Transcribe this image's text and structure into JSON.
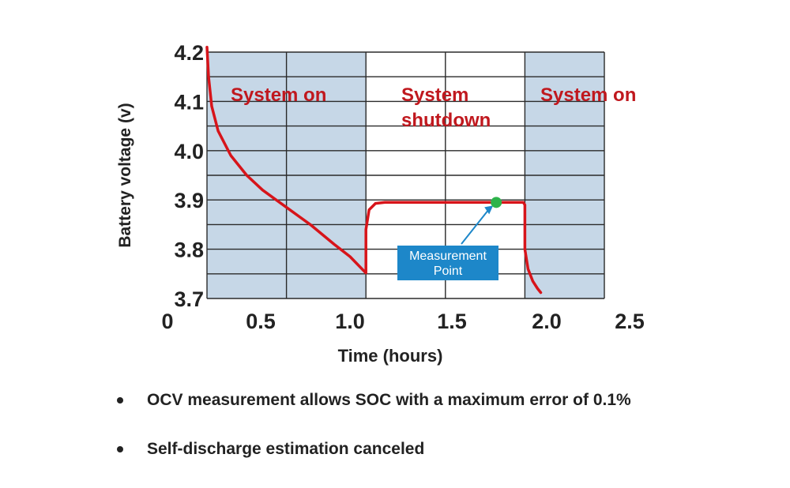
{
  "chart_data": {
    "type": "line",
    "xlabel": "Time (hours)",
    "ylabel": "Battery voltage (v)",
    "xlim": [
      0,
      2.5
    ],
    "ylim": [
      3.7,
      4.2
    ],
    "x_ticks": [
      "0",
      "0.5",
      "1.0",
      "1.5",
      "2.0",
      "2.5"
    ],
    "y_ticks": [
      "3.7",
      "3.8",
      "3.9",
      "4.0",
      "4.1",
      "4.2"
    ],
    "grid": true,
    "colors": {
      "line": "#d7141a",
      "shaded": "#c6d7e7",
      "label": "#c0181e",
      "marker": "#2db34a",
      "callout": "#1d87c9",
      "grid": "#2a2a2a"
    },
    "regions": [
      {
        "label": "System on",
        "x": [
          0,
          1.0
        ],
        "shaded": true
      },
      {
        "label": "System shutdown",
        "x": [
          1.0,
          2.0
        ],
        "shaded": false
      },
      {
        "label": "System on",
        "x": [
          2.0,
          2.5
        ],
        "shaded": true
      }
    ],
    "series": [
      {
        "x": [
          0.0,
          0.01,
          0.03,
          0.07,
          0.15,
          0.25,
          0.35,
          0.5,
          0.65,
          0.8,
          0.9,
          0.99,
          1.0,
          1.0,
          1.02,
          1.06,
          1.12,
          1.3,
          1.5,
          1.7,
          1.9,
          1.99,
          2.0,
          2.0,
          2.02,
          2.05,
          2.08,
          2.1
        ],
        "y": [
          4.21,
          4.15,
          4.09,
          4.04,
          3.99,
          3.95,
          3.92,
          3.885,
          3.85,
          3.81,
          3.785,
          3.755,
          3.752,
          3.84,
          3.88,
          3.893,
          3.895,
          3.895,
          3.895,
          3.895,
          3.895,
          3.895,
          3.89,
          3.8,
          3.76,
          3.735,
          3.72,
          3.712
        ]
      }
    ],
    "measurement_point": {
      "x": 1.82,
      "y": 3.895,
      "label": "Measurement Point"
    }
  },
  "bullets": [
    "OCV measurement allows SOC with a maximum error of 0.1%",
    "Self-discharge estimation canceled"
  ]
}
